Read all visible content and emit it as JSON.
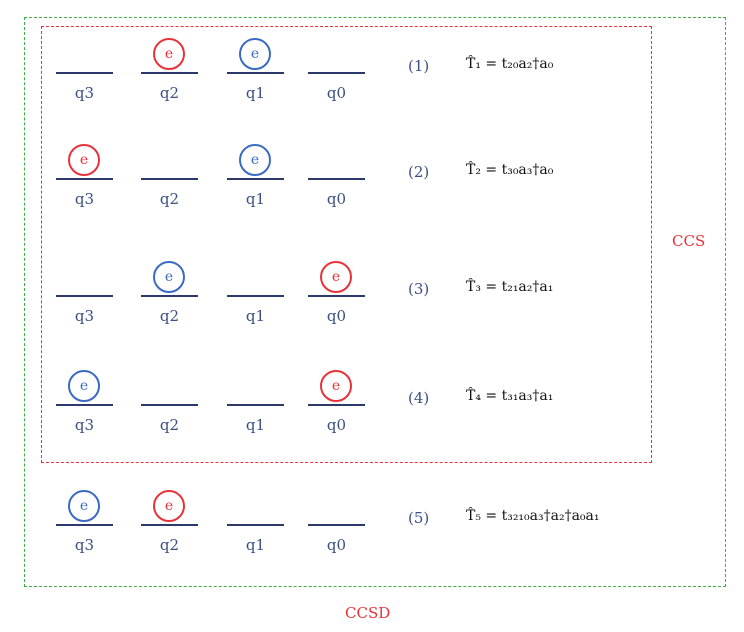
{
  "labels": {
    "ccs": "CCS",
    "ccsd": "CCSD"
  },
  "colors": {
    "red": "#e8323a",
    "blue": "#3a6bc4",
    "green": "#3cb043",
    "level": "#2b3a6b",
    "text": "#3b4f86"
  },
  "rows": [
    {
      "number": "(1)",
      "operator": "T̂₁ = t₂₀a₂†a₀",
      "qubits": [
        {
          "label": "q3",
          "electron": null
        },
        {
          "label": "q2",
          "electron": {
            "text": "e",
            "color": "red"
          }
        },
        {
          "label": "q1",
          "electron": {
            "text": "e",
            "color": "blue"
          }
        },
        {
          "label": "q0",
          "electron": null
        }
      ]
    },
    {
      "number": "(2)",
      "operator": "T̂₂ = t₃₀a₃†a₀",
      "qubits": [
        {
          "label": "q3",
          "electron": {
            "text": "e",
            "color": "red"
          }
        },
        {
          "label": "q2",
          "electron": null
        },
        {
          "label": "q1",
          "electron": {
            "text": "e",
            "color": "blue"
          }
        },
        {
          "label": "q0",
          "electron": null
        }
      ]
    },
    {
      "number": "(3)",
      "operator": "T̂₃ = t₂₁a₂†a₁",
      "qubits": [
        {
          "label": "q3",
          "electron": null
        },
        {
          "label": "q2",
          "electron": {
            "text": "e",
            "color": "blue"
          }
        },
        {
          "label": "q1",
          "electron": null
        },
        {
          "label": "q0",
          "electron": {
            "text": "e",
            "color": "red"
          }
        }
      ]
    },
    {
      "number": "(4)",
      "operator": "T̂₄ = t₃₁a₃†a₁",
      "qubits": [
        {
          "label": "q3",
          "electron": {
            "text": "e",
            "color": "blue"
          }
        },
        {
          "label": "q2",
          "electron": null
        },
        {
          "label": "q1",
          "electron": null
        },
        {
          "label": "q0",
          "electron": {
            "text": "e",
            "color": "red"
          }
        }
      ]
    },
    {
      "number": "(5)",
      "operator": "T̂₅ = t₃₂₁₀a₃†a₂†a₀a₁",
      "qubits": [
        {
          "label": "q3",
          "electron": {
            "text": "e",
            "color": "blue"
          }
        },
        {
          "label": "q2",
          "electron": {
            "text": "e",
            "color": "red"
          }
        },
        {
          "label": "q1",
          "electron": null
        },
        {
          "label": "q0",
          "electron": null
        }
      ]
    }
  ]
}
